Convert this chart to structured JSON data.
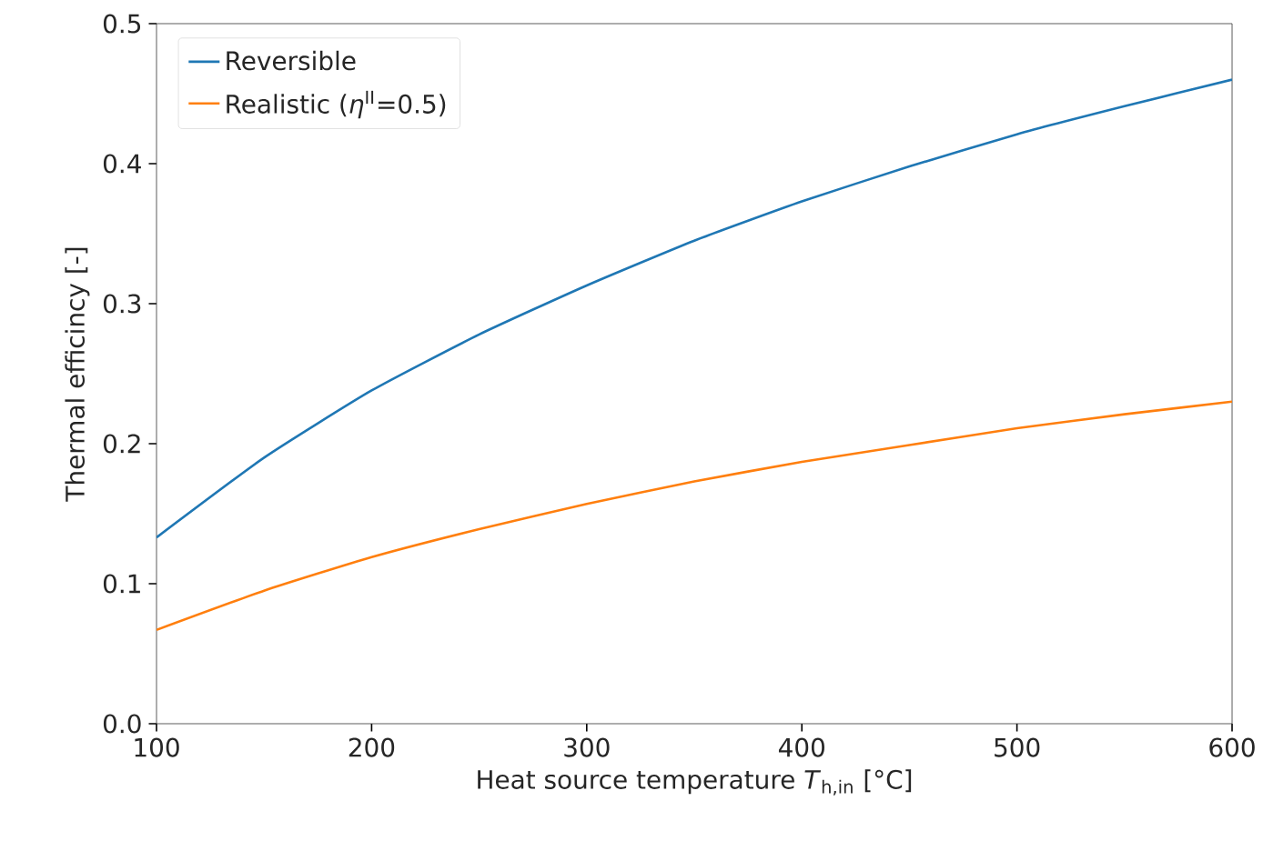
{
  "chart_data": {
    "type": "line",
    "xlabel": "Heat source temperature *T*$_{h,in}$ [°C]",
    "ylabel": "Thermal efficincy [-]",
    "x": [
      100,
      150,
      200,
      250,
      300,
      350,
      400,
      450,
      500,
      550,
      600
    ],
    "series": [
      {
        "name": "Reversible",
        "color": "#1f77b4",
        "values": [
          0.133,
          0.19,
          0.238,
          0.278,
          0.313,
          0.345,
          0.373,
          0.398,
          0.421,
          0.441,
          0.46
        ]
      },
      {
        "name": "Realistic (*η*$^{II}$=0.5)",
        "color": "#ff7f0e",
        "values": [
          0.067,
          0.095,
          0.119,
          0.139,
          0.157,
          0.173,
          0.187,
          0.199,
          0.211,
          0.221,
          0.23
        ]
      }
    ],
    "xlim": [
      100,
      600
    ],
    "ylim": [
      0,
      0.5
    ],
    "xticks": [
      100,
      200,
      300,
      400,
      500,
      600
    ],
    "yticks": [
      {
        "value": 0,
        "label": "0.0"
      },
      0.1,
      0.2,
      0.3,
      0.4,
      0.5
    ],
    "legend": "top left"
  }
}
